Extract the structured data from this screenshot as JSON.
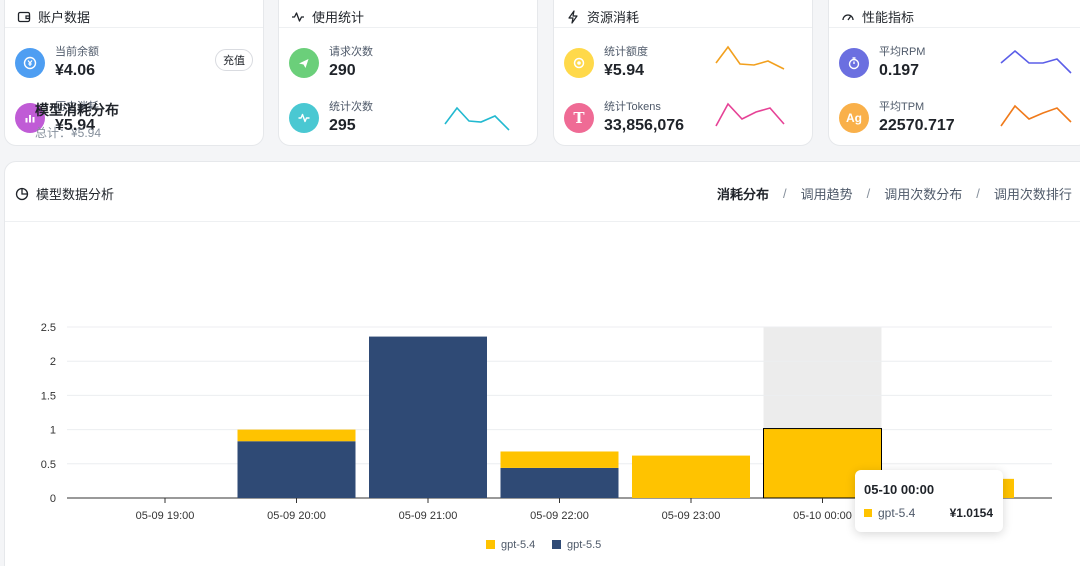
{
  "colors": {
    "blue": "#4e9ef2",
    "purple": "#c05cd6",
    "green": "#6bcf7a",
    "teal": "#4ac8d2",
    "yellow": "#ffd94a",
    "pink": "#ef6b95",
    "indigo": "#6b6fe0",
    "orange": "#f9b04a",
    "series_gpt54": "#ffc300",
    "series_gpt55": "#2f4a75"
  },
  "cards": {
    "account": {
      "title": "账户数据",
      "icon": "wallet-icon",
      "balance_label": "当前余额",
      "balance_value": "¥4.06",
      "recharge_label": "充值",
      "history_label": "历史消耗",
      "history_value": "¥5.94"
    },
    "usage": {
      "title": "使用统计",
      "icon": "activity-icon",
      "requests_label": "请求次数",
      "requests_value": "290",
      "stat_label": "统计次数",
      "stat_value": "295"
    },
    "resource": {
      "title": "资源消耗",
      "icon": "lightning-icon",
      "quota_label": "统计额度",
      "quota_value": "¥5.94",
      "tokens_label": "统计Tokens",
      "tokens_value": "33,856,076"
    },
    "performance": {
      "title": "性能指标",
      "icon": "gauge-icon",
      "rpm_label": "平均RPM",
      "rpm_value": "0.197",
      "tpm_label": "平均TPM",
      "tpm_value": "22570.717"
    }
  },
  "analysis": {
    "title": "模型数据分析",
    "tabs": [
      {
        "label": "消耗分布",
        "active": true
      },
      {
        "label": "调用趋势",
        "active": false
      },
      {
        "label": "调用次数分布",
        "active": false
      },
      {
        "label": "调用次数排行",
        "active": false
      }
    ],
    "separator": "/"
  },
  "chart_data": {
    "type": "bar",
    "stacked": true,
    "title": "模型消耗分布",
    "subtitle": "总计：¥5.94",
    "categories": [
      "05-09 19:00",
      "05-09 20:00",
      "05-09 21:00",
      "05-09 22:00",
      "05-09 23:00",
      "05-10 00:00",
      ""
    ],
    "series": [
      {
        "name": "gpt-5.5",
        "color": "#2f4a75",
        "values": [
          0,
          0.83,
          2.36,
          0.44,
          0,
          0,
          0
        ]
      },
      {
        "name": "gpt-5.4",
        "color": "#ffc300",
        "values": [
          0,
          0.17,
          0,
          0.24,
          0.62,
          1.0154,
          0.28
        ]
      }
    ],
    "y_ticks": [
      "0",
      "0.5",
      "1",
      "1.5",
      "2",
      "2.5"
    ],
    "ylim": [
      0,
      2.5
    ],
    "grid": true,
    "legend": [
      "gpt-5.4",
      "gpt-5.5"
    ],
    "legend_position": "bottom",
    "highlighted_category": "05-10 00:00"
  },
  "tooltip": {
    "title": "05-10 00:00",
    "series_name": "gpt-5.4",
    "value": "¥1.0154"
  }
}
